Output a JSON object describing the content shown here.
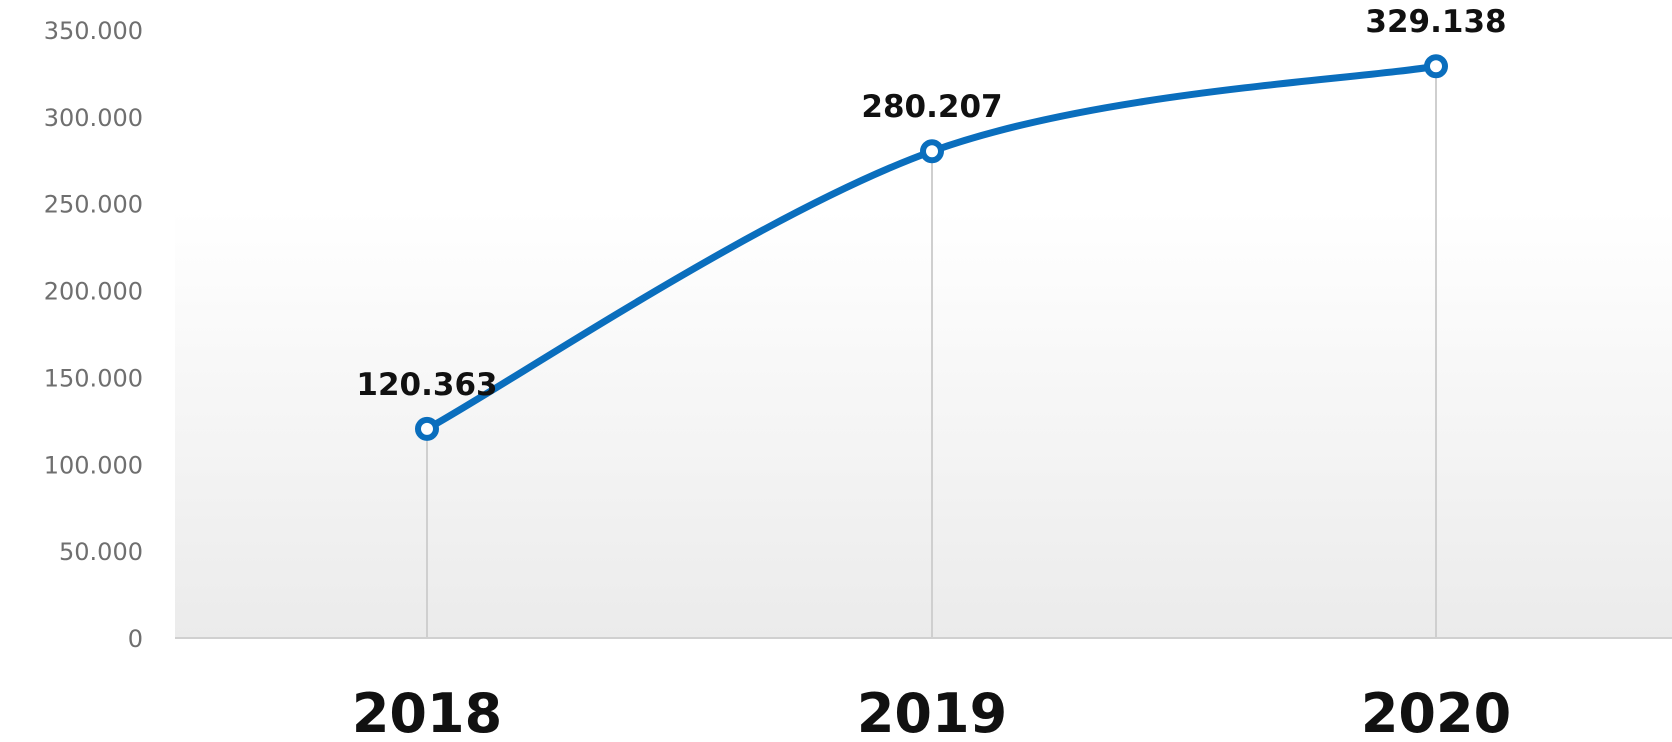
{
  "chart_data": {
    "type": "line",
    "smooth": true,
    "categories": [
      "2018",
      "2019",
      "2020"
    ],
    "series": [
      {
        "values": [
          120363,
          280207,
          329138
        ]
      }
    ],
    "data_labels": [
      "120.363",
      "280.207",
      "329.138"
    ],
    "y_ticks": [
      {
        "value": 0,
        "label": "0"
      },
      {
        "value": 50000,
        "label": "50.000"
      },
      {
        "value": 100000,
        "label": "100.000"
      },
      {
        "value": 150000,
        "label": "150.000"
      },
      {
        "value": 200000,
        "label": "200.000"
      },
      {
        "value": 250000,
        "label": "250.000"
      },
      {
        "value": 300000,
        "label": "300.000"
      },
      {
        "value": 350000,
        "label": "350.000"
      }
    ],
    "ylim": [
      0,
      350000
    ],
    "grid": false,
    "drop_lines": true,
    "legend": "none",
    "colors": {
      "line": "#0a6ebd",
      "marker_fill": "#ffffff",
      "axis": "#d0d0d0",
      "drop_line": "#cfcfcf"
    }
  }
}
